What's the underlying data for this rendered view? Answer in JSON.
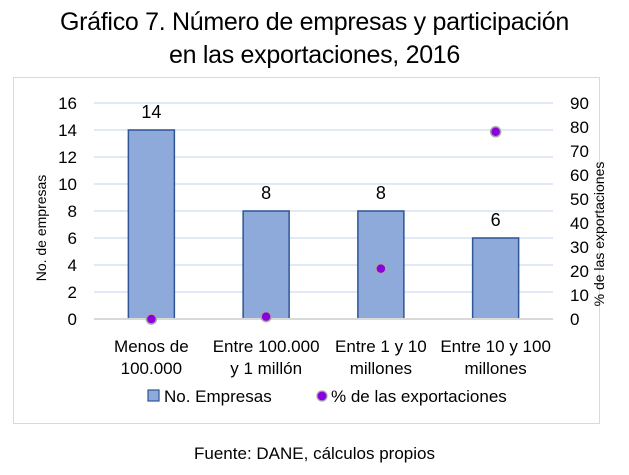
{
  "title_line1": "Gráfico 7. Número de empresas y participación",
  "title_line2": "en las exportaciones, 2016",
  "source": "Fuente: DANE, cálculos propios",
  "colors": {
    "bar_fill": "#8eaadb",
    "bar_stroke": "#2f5597",
    "marker_fill": "#8b00e0",
    "marker_stroke": "#a6a6a6",
    "gridline": "#d9e2f3",
    "baseline": "#d9d9d9"
  },
  "chart_data": {
    "type": "bar",
    "title": "Gráfico 7. Número de empresas y participación en las exportaciones, 2016",
    "categories": [
      [
        "Menos de",
        "100.000"
      ],
      [
        "Entre 100.000",
        "y 1 millón"
      ],
      [
        "Entre 1 y 10",
        "millones"
      ],
      [
        "Entre 10 y 100",
        "millones"
      ]
    ],
    "series": [
      {
        "name": "No. Empresas",
        "type": "bar",
        "axis": "left",
        "values": [
          14,
          8,
          8,
          6
        ],
        "data_labels": [
          "14",
          "8",
          "8",
          "6"
        ]
      },
      {
        "name": "% de las exportaciones",
        "type": "scatter",
        "axis": "right",
        "values": [
          0,
          1,
          21,
          78
        ]
      }
    ],
    "ylabel": "No. de empresas",
    "y2label": "% de las exportaciones",
    "ylim": [
      0,
      16
    ],
    "y2lim": [
      0,
      90
    ],
    "yticks": [
      "0",
      "2",
      "4",
      "6",
      "8",
      "10",
      "12",
      "14",
      "16"
    ],
    "y2ticks": [
      "0",
      "10",
      "20",
      "30",
      "40",
      "50",
      "60",
      "70",
      "80",
      "90"
    ],
    "grid": true,
    "legend": "bottom",
    "legend_entries": [
      "No. Empresas",
      "% de las exportaciones"
    ]
  }
}
